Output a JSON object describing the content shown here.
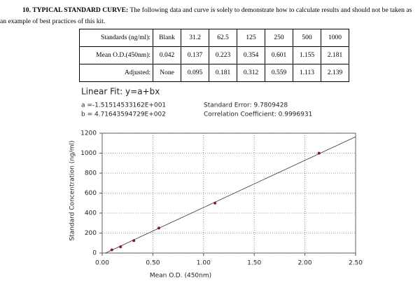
{
  "heading": {
    "label": "10. TYPICAL STANDARD CURVE:",
    "text": "The following data and curve is solely to demonstrate how to calculate results and should not be taken as an example of best practices of this kit."
  },
  "table": {
    "rows": [
      [
        "Standards (ng/ml):",
        "Blank",
        "31.2",
        "62.5",
        "125",
        "250",
        "500",
        "1000"
      ],
      [
        "Mean O.D.(450nm):",
        "0.042",
        "0.137",
        "0.223",
        "0.354",
        "0.601",
        "1.155",
        "2.181"
      ],
      [
        "Adjusted:",
        "None",
        "0.095",
        "0.181",
        "0.312",
        "0.559",
        "1.113",
        "2.139"
      ]
    ]
  },
  "chart_data": {
    "type": "scatter",
    "title": "Linear Fit: y=a+bx",
    "annotations": [
      "a =-1.51514533162E+001",
      "b = 4.71643594729E+002",
      "Standard Error: 9.7809428",
      "Correlation Coefficient: 0.9996931"
    ],
    "xlabel": "Mean O.D. (450nm)",
    "ylabel": "Standard Concentration (ng/ml)",
    "x": [
      0.095,
      0.181,
      0.312,
      0.559,
      1.113,
      2.139
    ],
    "y": [
      31.2,
      62.5,
      125,
      250,
      500,
      1000
    ],
    "color": "#8b1a1a",
    "fit_line": {
      "x": [
        0.032,
        2.5
      ],
      "y": [
        0,
        1164
      ]
    },
    "line_color": "#333333",
    "xlim": [
      0,
      2.5
    ],
    "ylim": [
      0,
      1200
    ],
    "xticks": [
      {
        "value": 0,
        "label": "0.00"
      },
      {
        "value": 0.5,
        "label": "0.50"
      },
      {
        "value": 1,
        "label": "1.00"
      },
      {
        "value": 1.5,
        "label": "1.50"
      },
      {
        "value": 2,
        "label": "2.00"
      },
      {
        "value": 2.5,
        "label": "2.50"
      }
    ],
    "yticks": [
      0,
      200,
      400,
      600,
      800,
      1000,
      1200
    ],
    "grid": true
  }
}
